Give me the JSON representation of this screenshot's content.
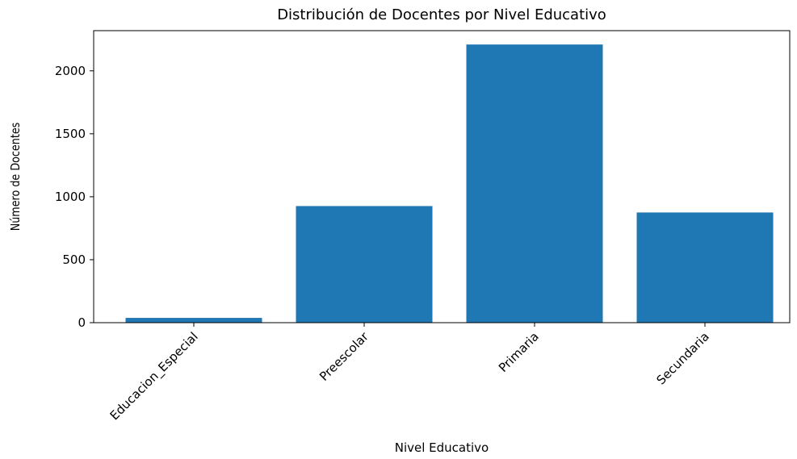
{
  "chart_data": {
    "type": "bar",
    "title": "Distribución de Docentes por Nivel Educativo",
    "x_label": "Nivel Educativo",
    "y_label": "Número de Docentes",
    "categories": [
      "Educacion_Especial",
      "Preescolar",
      "Primaria",
      "Secundaria"
    ],
    "values": [
      38,
      926,
      2209,
      875
    ],
    "color": "#1f77b4",
    "ylim": [
      0,
      2319
    ],
    "yticks": [
      0,
      500,
      1000,
      1500,
      2000
    ],
    "grid": false
  }
}
